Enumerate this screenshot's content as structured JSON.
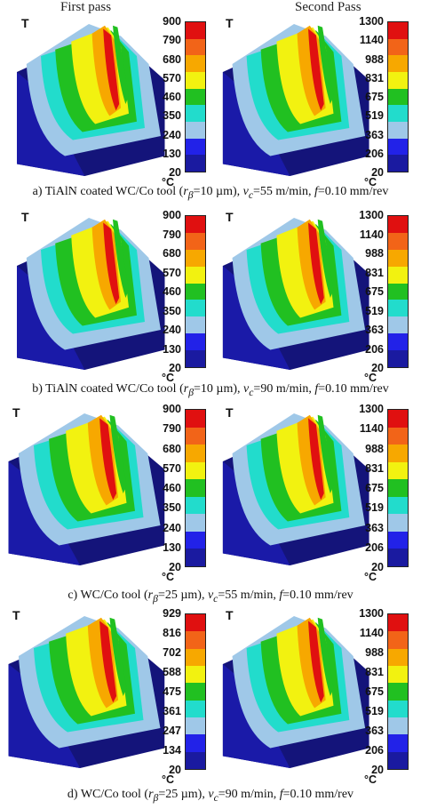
{
  "columns": {
    "first": "First pass",
    "second": "Second Pass"
  },
  "temp_label": "T",
  "unit_label": "°C",
  "scale_colors": [
    "#e01010",
    "#f26418",
    "#f7a800",
    "#f2f210",
    "#21c021",
    "#22dccc",
    "#9fc8e8",
    "#2222e8",
    "#1a1aa0"
  ],
  "panels": [
    {
      "caption": {
        "pre": "a) TiAlN coated WC/Co tool (",
        "r": "r",
        "r_sub": "β",
        "mid1": "=10 µm),  ",
        "v": "v",
        "v_sub": "c",
        "mid2": "=55 m/min, ",
        "f": "f",
        "tail": "=0.10 mm/rev"
      },
      "first_ticks": [
        "900",
        "790",
        "680",
        "570",
        "460",
        "350",
        "240",
        "130",
        "20"
      ],
      "second_ticks": [
        "1300",
        "1140",
        "988",
        "831",
        "675",
        "519",
        "363",
        "206",
        "20"
      ]
    },
    {
      "caption": {
        "pre": "b) TiAlN coated WC/Co tool (",
        "r": "r",
        "r_sub": "β",
        "mid1": "=10 µm), ",
        "v": "v",
        "v_sub": "c",
        "mid2": "=90 m/min, ",
        "f": "f",
        "tail": "=0.10 mm/rev"
      },
      "first_ticks": [
        "900",
        "790",
        "680",
        "570",
        "460",
        "350",
        "240",
        "130",
        "20"
      ],
      "second_ticks": [
        "1300",
        "1140",
        "988",
        "831",
        "675",
        "519",
        "363",
        "206",
        "20"
      ]
    },
    {
      "caption": {
        "pre": "c) WC/Co tool (",
        "r": "r",
        "r_sub": "β",
        "mid1": "=25 µm), ",
        "v": "v",
        "v_sub": "c",
        "mid2": "=55 m/min, ",
        "f": "f",
        "tail": "=0.10 mm/rev"
      },
      "first_ticks": [
        "900",
        "790",
        "680",
        "570",
        "460",
        "350",
        "240",
        "130",
        "20"
      ],
      "second_ticks": [
        "1300",
        "1140",
        "988",
        "831",
        "675",
        "519",
        "363",
        "206",
        "20"
      ]
    },
    {
      "caption": {
        "pre": "d) WC/Co tool (",
        "r": "r",
        "r_sub": "β",
        "mid1": "=25 µm), ",
        "v": "v",
        "v_sub": "c",
        "mid2": "=90 m/min, ",
        "f": "f",
        "tail": "=0.10 mm/rev"
      },
      "first_ticks": [
        "929",
        "816",
        "702",
        "588",
        "475",
        "361",
        "247",
        "134",
        "20"
      ],
      "second_ticks": [
        "1300",
        "1140",
        "988",
        "831",
        "675",
        "519",
        "363",
        "206",
        "20"
      ]
    }
  ]
}
